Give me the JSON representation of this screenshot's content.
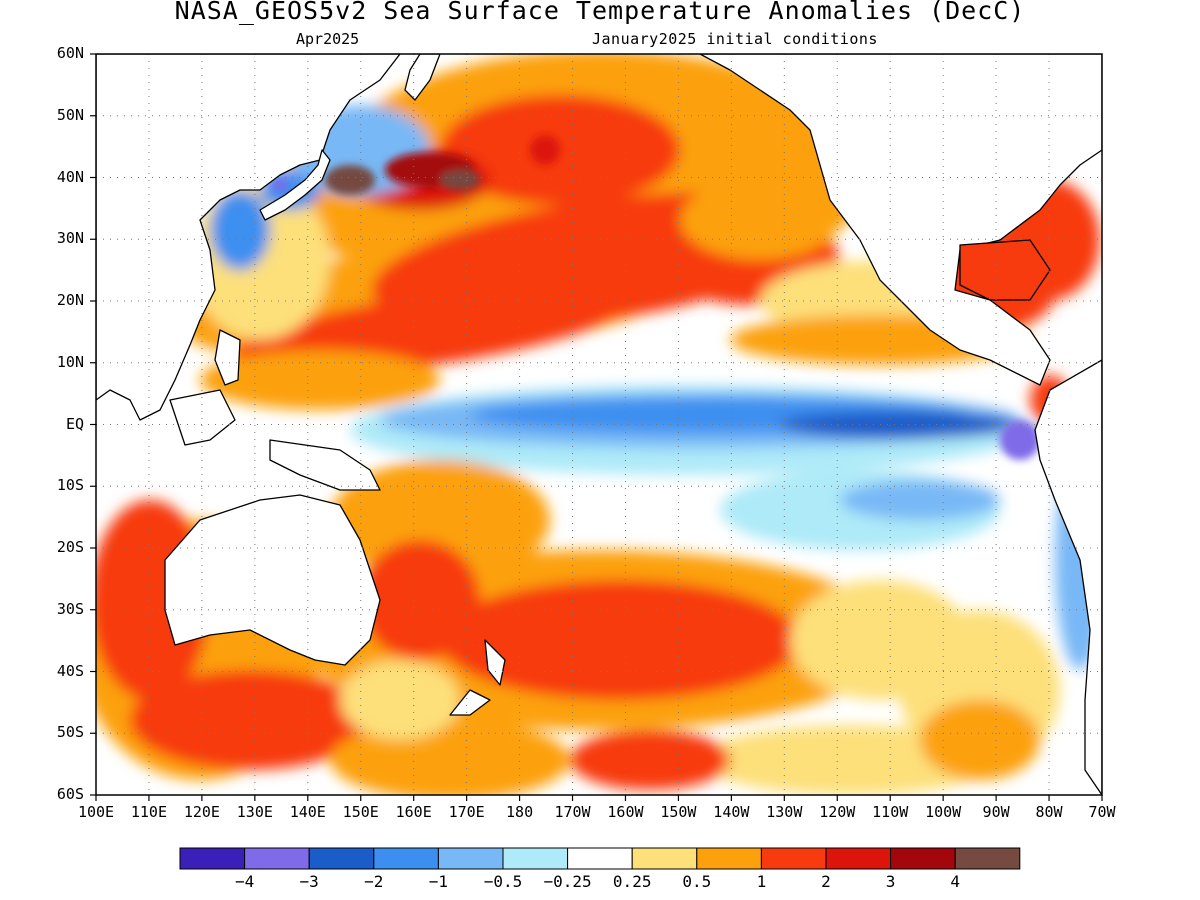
{
  "header": {
    "title": "NASA_GEOS5v2 Sea Surface Temperature Anomalies (DecC)",
    "valid_month": "Apr2025",
    "initial_conditions": "January2025 initial conditions"
  },
  "map": {
    "region": "Pacific Ocean",
    "lon_range": [
      100,
      290
    ],
    "lat_range": [
      -60,
      60
    ],
    "grid": "dotted"
  },
  "axes": {
    "lat_labels": [
      "60N",
      "50N",
      "40N",
      "30N",
      "20N",
      "10N",
      "EQ",
      "10S",
      "20S",
      "30S",
      "40S",
      "50S",
      "60S"
    ],
    "lon_labels": [
      "100E",
      "110E",
      "120E",
      "130E",
      "140E",
      "150E",
      "160E",
      "170E",
      "180",
      "170W",
      "160W",
      "150W",
      "140W",
      "130W",
      "120W",
      "110W",
      "100W",
      "90W",
      "80W",
      "70W"
    ]
  },
  "colorbar": {
    "colors": [
      "#3a20b8",
      "#7f6ae8",
      "#1a5cc8",
      "#3c8ff0",
      "#78b8f6",
      "#aeeaf8",
      "#ffffff",
      "#fde07a",
      "#fca10c",
      "#f73b0f",
      "#dc140c",
      "#a4070b",
      "#754a40"
    ],
    "labels": [
      "-4",
      "-3",
      "-2",
      "-1",
      "-0.5",
      "-0.25",
      "0.25",
      "0.5",
      "1",
      "2",
      "3",
      "4"
    ]
  }
}
